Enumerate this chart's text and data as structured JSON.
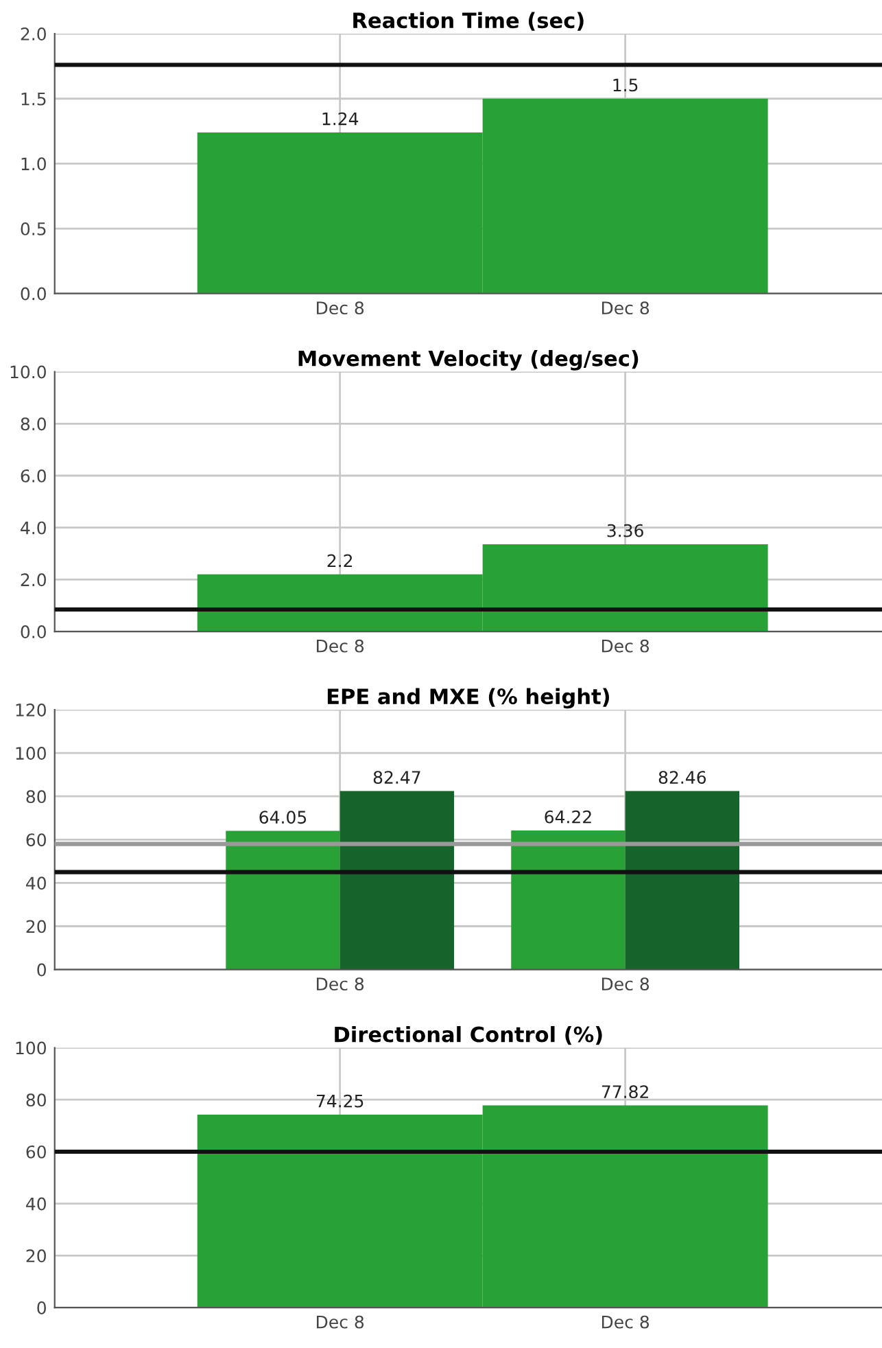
{
  "chart_data": [
    {
      "type": "bar",
      "title": "Reaction Time (sec)",
      "categories": [
        "Dec 8",
        "Dec 8"
      ],
      "values": [
        1.24,
        1.5
      ],
      "color": "#28a236",
      "data_labels": true,
      "ylim": [
        0,
        2.0
      ],
      "yticks": [
        {
          "value": 0,
          "label": "0.0"
        },
        0.5,
        {
          "value": 1,
          "label": "1.0"
        },
        1.5,
        {
          "value": 2,
          "label": "2.0"
        }
      ],
      "grid": true,
      "ref_lines": [
        {
          "axis": "y",
          "value": 1.76,
          "color": "#111111"
        }
      ]
    },
    {
      "type": "bar",
      "title": "Movement Velocity (deg/sec)",
      "categories": [
        "Dec 8",
        "Dec 8"
      ],
      "values": [
        2.2,
        3.36
      ],
      "color": "#28a236",
      "data_labels": true,
      "ylim": [
        0,
        10.0
      ],
      "yticks": [
        {
          "value": 0,
          "label": "0.0"
        },
        {
          "value": 2,
          "label": "2.0"
        },
        {
          "value": 4,
          "label": "4.0"
        },
        {
          "value": 6,
          "label": "6.0"
        },
        {
          "value": 8,
          "label": "8.0"
        },
        {
          "value": 10,
          "label": "10.0"
        }
      ],
      "grid": true,
      "ref_lines": [
        {
          "axis": "y",
          "value": 0.85,
          "color": "#111111"
        }
      ]
    },
    {
      "type": "bar",
      "title": "EPE and MXE (% height)",
      "categories": [
        "Dec 8",
        "Dec 8"
      ],
      "series": [
        {
          "color": "#28a236",
          "values": [
            64.05,
            64.22
          ]
        },
        {
          "color": "#16632b",
          "values": [
            82.47,
            82.46
          ]
        }
      ],
      "data_labels": true,
      "ylim": [
        0,
        120
      ],
      "yticks": [
        0,
        20,
        40,
        60,
        80,
        100,
        120
      ],
      "grid": true,
      "ref_lines": [
        {
          "axis": "y",
          "value": 45,
          "color": "#111111"
        },
        {
          "axis": "y",
          "value": 58,
          "color": "#999999"
        }
      ]
    },
    {
      "type": "bar",
      "title": "Directional Control (%)",
      "categories": [
        "Dec 8",
        "Dec 8"
      ],
      "values": [
        74.25,
        77.82
      ],
      "color": "#28a236",
      "data_labels": true,
      "ylim": [
        0,
        100
      ],
      "yticks": [
        0,
        20,
        40,
        60,
        80,
        100
      ],
      "grid": true,
      "ref_lines": [
        {
          "axis": "y",
          "value": 60,
          "color": "#111111"
        }
      ]
    }
  ]
}
